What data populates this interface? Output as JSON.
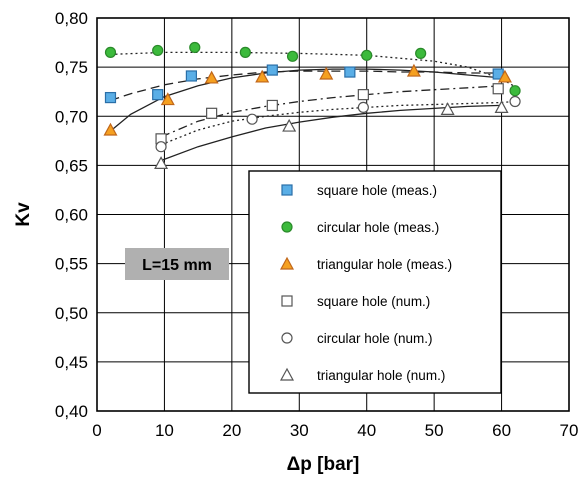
{
  "chart_data": {
    "type": "scatter",
    "xlabel": "Δp [bar]",
    "ylabel": "Kv",
    "xlim": [
      0,
      70
    ],
    "ylim": [
      0.4,
      0.8
    ],
    "x_ticks": [
      "0",
      "10",
      "20",
      "30",
      "40",
      "50",
      "60",
      "70"
    ],
    "y_ticks": [
      "0,40",
      "0,45",
      "0,50",
      "0,55",
      "0,60",
      "0,65",
      "0,70",
      "0,75",
      "0,80"
    ],
    "grid": true,
    "legend_position": "lower-right",
    "annotation": "L=15 mm",
    "series": [
      {
        "name": "square hole (meas.)",
        "marker": "square-filled",
        "color": "#5aaee6",
        "line_style": "dash",
        "x": [
          2,
          9,
          14,
          26,
          37.5,
          59.5
        ],
        "y": [
          0.719,
          0.722,
          0.741,
          0.747,
          0.745,
          0.743
        ],
        "fit_x": [
          2,
          5,
          10,
          15,
          20,
          25,
          30,
          35,
          40,
          45,
          50,
          55,
          60
        ],
        "fit_y": [
          0.716,
          0.723,
          0.732,
          0.738,
          0.742,
          0.745,
          0.746,
          0.746,
          0.746,
          0.745,
          0.745,
          0.744,
          0.744
        ]
      },
      {
        "name": "circular hole (meas.)",
        "marker": "circle-filled",
        "color": "#3cba3c",
        "line_style": "dot",
        "x": [
          2,
          9,
          14.5,
          22,
          29,
          40,
          48,
          62
        ],
        "y": [
          0.765,
          0.767,
          0.77,
          0.765,
          0.761,
          0.762,
          0.764,
          0.726
        ],
        "fit_x": [
          2,
          10,
          20,
          30,
          40,
          50,
          55,
          60,
          62
        ],
        "fit_y": [
          0.763,
          0.765,
          0.765,
          0.764,
          0.762,
          0.756,
          0.75,
          0.738,
          0.73
        ]
      },
      {
        "name": "triangular hole (meas.)",
        "marker": "triangle-filled",
        "color": "#f5a020",
        "line_style": "solid",
        "x": [
          2,
          10.5,
          17,
          24.5,
          34,
          47,
          60.5
        ],
        "y": [
          0.686,
          0.717,
          0.739,
          0.74,
          0.743,
          0.746,
          0.74
        ],
        "fit_x": [
          2,
          5,
          10,
          15,
          20,
          25,
          30,
          35,
          40,
          45,
          50,
          55,
          60
        ],
        "fit_y": [
          0.685,
          0.702,
          0.72,
          0.731,
          0.739,
          0.744,
          0.747,
          0.748,
          0.748,
          0.747,
          0.745,
          0.742,
          0.739
        ]
      },
      {
        "name": "square hole (num.)",
        "marker": "square-open",
        "color": "#333333",
        "line_style": "dashdot",
        "x": [
          9.5,
          17,
          26,
          39.5,
          59.5
        ],
        "y": [
          0.677,
          0.703,
          0.711,
          0.722,
          0.728
        ],
        "fit_x": [
          9.5,
          15,
          20,
          25,
          30,
          35,
          40,
          45,
          50,
          55,
          60
        ],
        "fit_y": [
          0.679,
          0.695,
          0.704,
          0.71,
          0.715,
          0.719,
          0.722,
          0.725,
          0.727,
          0.729,
          0.731
        ]
      },
      {
        "name": "circular hole (num.)",
        "marker": "circle-open",
        "color": "#333333",
        "line_style": "dot",
        "x": [
          9.5,
          23,
          39.5,
          62
        ],
        "y": [
          0.669,
          0.697,
          0.709,
          0.715
        ],
        "fit_x": [
          9.5,
          15,
          20,
          25,
          30,
          35,
          40,
          45,
          50,
          55,
          60,
          62
        ],
        "fit_y": [
          0.671,
          0.686,
          0.695,
          0.7,
          0.704,
          0.707,
          0.709,
          0.711,
          0.712,
          0.713,
          0.714,
          0.715
        ]
      },
      {
        "name": "triangular hole (num.)",
        "marker": "triangle-open",
        "color": "#333333",
        "line_style": "solid",
        "x": [
          9.5,
          28.5,
          52,
          60
        ],
        "y": [
          0.652,
          0.69,
          0.707,
          0.709
        ],
        "fit_x": [
          9.5,
          15,
          20,
          25,
          30,
          35,
          40,
          45,
          50,
          55,
          60
        ],
        "fit_y": [
          0.655,
          0.669,
          0.679,
          0.688,
          0.694,
          0.699,
          0.703,
          0.706,
          0.708,
          0.71,
          0.711
        ]
      }
    ]
  }
}
